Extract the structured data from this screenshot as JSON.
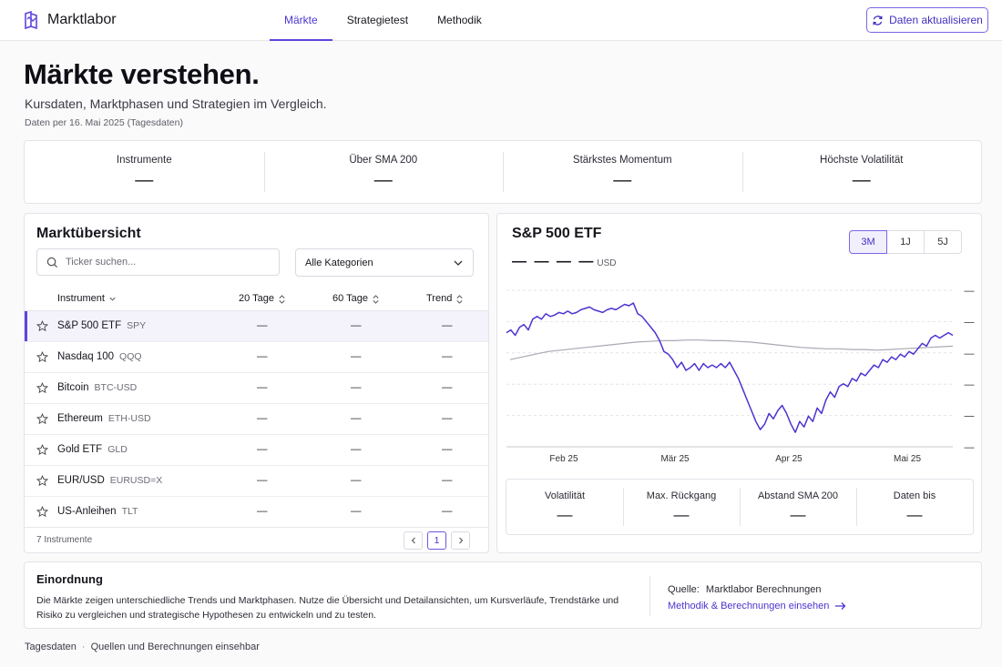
{
  "app": {
    "brand": "Marktlabor",
    "accent": "#5b45e0"
  },
  "nav": {
    "tabs": [
      "Märkte",
      "Strategietest",
      "Methodik"
    ],
    "active": "Märkte",
    "refresh_label": "Daten aktualisieren"
  },
  "hero": {
    "title": "Märkte verstehen.",
    "subtitle": "Kursdaten, Marktphasen und Strategien im Vergleich.",
    "date_note": "Daten per 16. Mai 2025 (Tagesdaten)"
  },
  "kpis": [
    {
      "label": "Instrumente",
      "value": "—"
    },
    {
      "label": "Über SMA 200",
      "value": "—"
    },
    {
      "label": "Stärkstes Momentum",
      "value": "—"
    },
    {
      "label": "Höchste Volatilität",
      "value": "—"
    }
  ],
  "market": {
    "title": "Marktübersicht",
    "search_placeholder": "Ticker suchen...",
    "category_selected": "Alle Kategorien",
    "columns": [
      "Instrument",
      "20 Tage",
      "60 Tage",
      "Trend"
    ],
    "rows": [
      {
        "name": "S&P 500 ETF",
        "ticker": "SPY",
        "d20": "—",
        "d60": "—",
        "trend": "—",
        "selected": true
      },
      {
        "name": "Nasdaq 100",
        "ticker": "QQQ",
        "d20": "—",
        "d60": "—",
        "trend": "—"
      },
      {
        "name": "Bitcoin",
        "ticker": "BTC-USD",
        "d20": "—",
        "d60": "—",
        "trend": "—"
      },
      {
        "name": "Ethereum",
        "ticker": "ETH-USD",
        "d20": "—",
        "d60": "—",
        "trend": "—"
      },
      {
        "name": "Gold ETF",
        "ticker": "GLD",
        "d20": "—",
        "d60": "—",
        "trend": "—"
      },
      {
        "name": "EUR/USD",
        "ticker": "EURUSD=X",
        "d20": "—",
        "d60": "—",
        "trend": "—"
      },
      {
        "name": "US-Anleihen",
        "ticker": "TLT",
        "d20": "—",
        "d60": "—",
        "trend": "—"
      }
    ],
    "count_label": "7 Instrumente",
    "page": "1"
  },
  "detail": {
    "title": "S&P 500 ETF",
    "price": "— — — —",
    "currency": "USD",
    "ranges": [
      "3M",
      "1J",
      "5J"
    ],
    "active_range": "3M",
    "stats": [
      {
        "label": "Volatilität",
        "value": "—"
      },
      {
        "label": "Max. Rückgang",
        "value": "—"
      },
      {
        "label": "Abstand SMA 200",
        "value": "—"
      },
      {
        "label": "Daten bis",
        "value": "—"
      }
    ]
  },
  "chart_data": {
    "type": "line",
    "x_tick_labels": [
      "Feb 25",
      "Mär 25",
      "Apr 25",
      "Mai 25"
    ],
    "y_tick_labels": [
      "—",
      "—",
      "—",
      "—",
      "—",
      "—"
    ],
    "series": [
      {
        "role": "price",
        "color": "#4b35d0",
        "values": [
          0.78,
          0.8,
          0.76,
          0.82,
          0.84,
          0.8,
          0.88,
          0.9,
          0.88,
          0.92,
          0.9,
          0.91,
          0.93,
          0.92,
          0.94,
          0.92,
          0.93,
          0.95,
          0.96,
          0.97,
          0.95,
          0.94,
          0.93,
          0.95,
          0.96,
          0.95,
          0.97,
          0.99,
          0.98,
          1.0,
          0.92,
          0.9,
          0.86,
          0.82,
          0.78,
          0.72,
          0.64,
          0.62,
          0.58,
          0.52,
          0.56,
          0.5,
          0.52,
          0.55,
          0.5,
          0.55,
          0.52,
          0.54,
          0.52,
          0.55,
          0.52,
          0.56,
          0.5,
          0.44,
          0.36,
          0.28,
          0.2,
          0.12,
          0.06,
          0.1,
          0.18,
          0.14,
          0.2,
          0.24,
          0.18,
          0.1,
          0.04,
          0.12,
          0.08,
          0.16,
          0.12,
          0.22,
          0.18,
          0.28,
          0.34,
          0.3,
          0.38,
          0.4,
          0.38,
          0.44,
          0.42,
          0.48,
          0.46,
          0.5,
          0.54,
          0.52,
          0.58,
          0.56,
          0.6,
          0.58,
          0.62,
          0.6,
          0.64,
          0.62,
          0.66,
          0.7,
          0.68,
          0.74,
          0.76,
          0.74,
          0.76,
          0.78,
          0.76
        ]
      },
      {
        "role": "sma",
        "color": "#a9a9b3",
        "values": [
          0.58,
          0.6,
          0.62,
          0.64,
          0.65,
          0.66,
          0.67,
          0.68,
          0.69,
          0.7,
          0.71,
          0.715,
          0.72,
          0.72,
          0.725,
          0.725,
          0.72,
          0.72,
          0.715,
          0.71,
          0.7,
          0.69,
          0.68,
          0.67,
          0.665,
          0.66,
          0.66,
          0.655,
          0.655,
          0.65,
          0.655,
          0.66,
          0.665,
          0.67,
          0.675,
          0.68
        ]
      }
    ]
  },
  "info": {
    "title": "Einordnung",
    "text": "Die Märkte zeigen unterschiedliche Trends und Marktphasen. Nutze die Übersicht und Detailansichten, um Kursverläufe, Trendstärke und Risiko zu vergleichen und strategische Hypothesen zu entwickeln und zu testen.",
    "source_label": "Quelle:",
    "source_value": "Marktlabor Berechnungen",
    "link": "Methodik & Berechnungen einsehen"
  },
  "footer": {
    "left": "Tagesdaten",
    "right": "Quellen und Berechnungen einsehbar"
  }
}
